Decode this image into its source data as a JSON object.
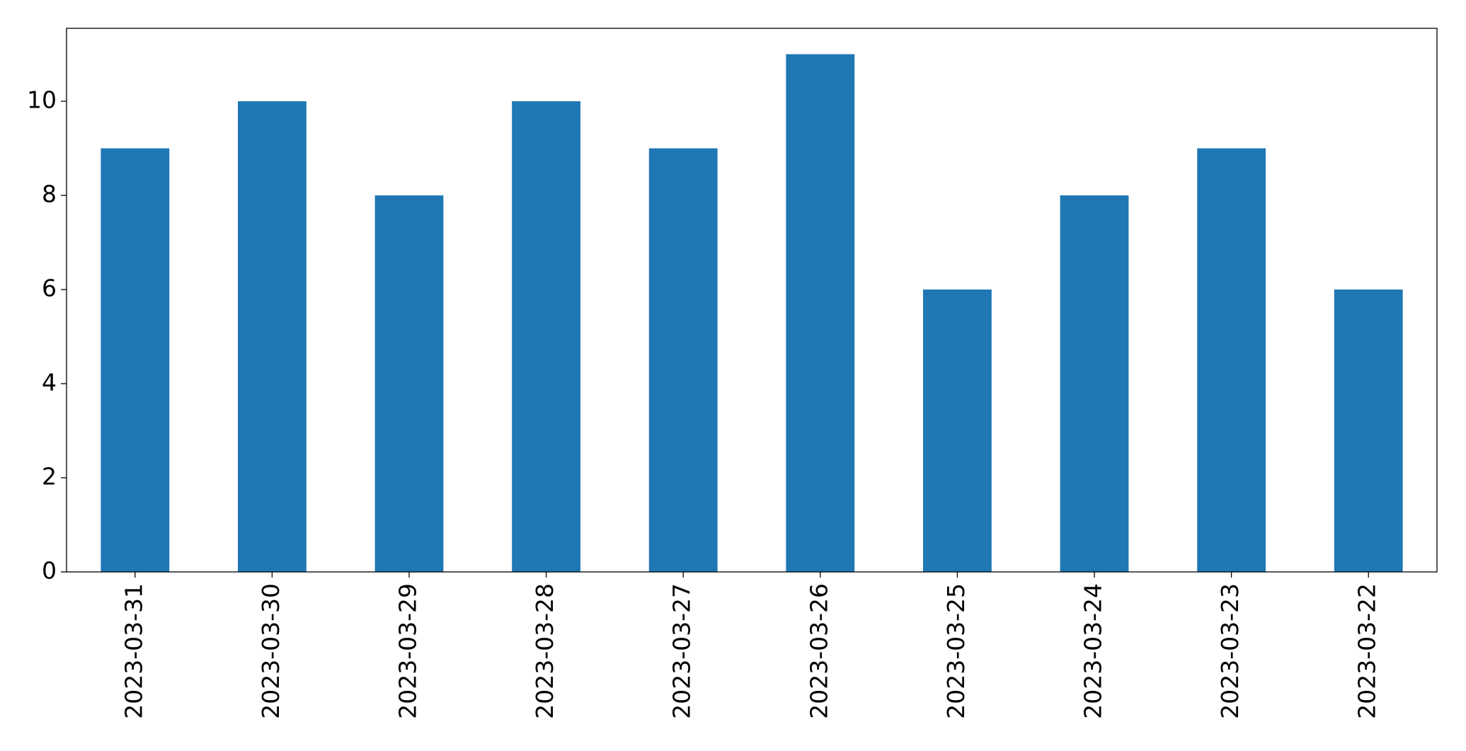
{
  "chart_data": {
    "type": "bar",
    "categories": [
      "2023-03-31",
      "2023-03-30",
      "2023-03-29",
      "2023-03-28",
      "2023-03-27",
      "2023-03-26",
      "2023-03-25",
      "2023-03-24",
      "2023-03-23",
      "2023-03-22"
    ],
    "values": [
      9,
      10,
      8,
      10,
      9,
      11,
      6,
      8,
      9,
      6
    ],
    "color": "#1f77b4",
    "ylim": [
      0,
      11.55
    ],
    "yticks": [
      0,
      2,
      4,
      6,
      8,
      10
    ],
    "grid": false
  }
}
